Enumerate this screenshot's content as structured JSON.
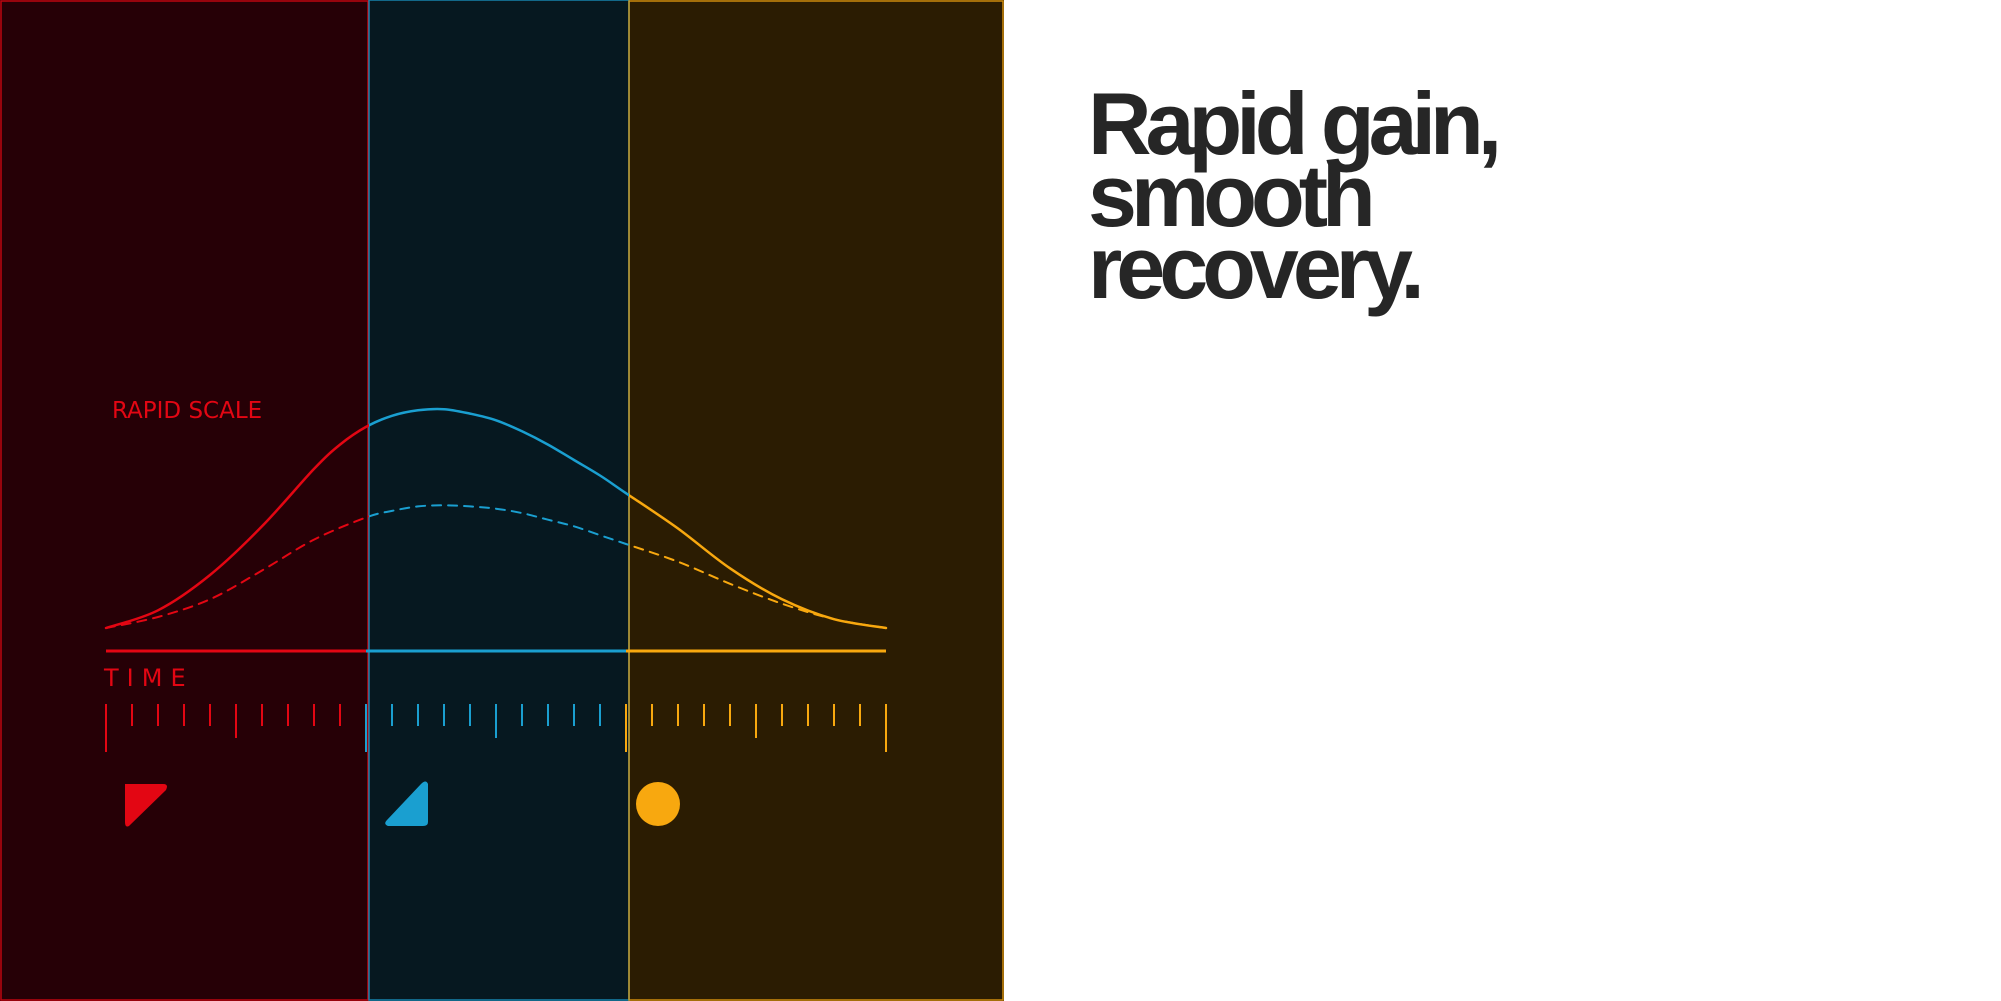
{
  "headline": {
    "line1": "Rapid gain,",
    "line2": "smooth",
    "line3": "recovery."
  },
  "chart_data": {
    "type": "line",
    "scale_label": "RAPID SCALE",
    "xlabel": "TIME",
    "ylabel": "",
    "xlim": [
      0,
      30
    ],
    "ylim": [
      0,
      1
    ],
    "grid": false,
    "phases": [
      {
        "color": "#e30613",
        "background": "#260006",
        "x_start": 0,
        "x_end": 10,
        "icon": "red-wedge-icon"
      },
      {
        "color": "#1a9fd0",
        "background": "#061820",
        "x_start": 10,
        "x_end": 20,
        "icon": "blue-wedge-icon"
      },
      {
        "color": "#f8a80f",
        "background": "#2b1c02",
        "x_start": 20,
        "x_end": 30,
        "icon": "orange-circle-icon"
      }
    ],
    "series": [
      {
        "style": "solid",
        "x": [
          0,
          2,
          4,
          6,
          8,
          9,
          10,
          11,
          12,
          13,
          14,
          15,
          16,
          17,
          18,
          19,
          20,
          22,
          24,
          26,
          28,
          30
        ],
        "y": [
          0.0,
          0.08,
          0.24,
          0.46,
          0.72,
          0.83,
          0.91,
          0.96,
          0.985,
          0.99,
          0.97,
          0.94,
          0.89,
          0.83,
          0.76,
          0.69,
          0.61,
          0.45,
          0.27,
          0.13,
          0.04,
          0.0
        ]
      },
      {
        "style": "dashed",
        "x": [
          0,
          2,
          4,
          6,
          8,
          10,
          11,
          12,
          13,
          14,
          15,
          16,
          17,
          18,
          19,
          20,
          22,
          24,
          26,
          28,
          30
        ],
        "y": [
          0.0,
          0.05,
          0.13,
          0.26,
          0.4,
          0.5,
          0.53,
          0.55,
          0.555,
          0.55,
          0.54,
          0.52,
          0.49,
          0.46,
          0.42,
          0.38,
          0.3,
          0.2,
          0.11,
          0.04,
          0.0
        ]
      }
    ]
  }
}
